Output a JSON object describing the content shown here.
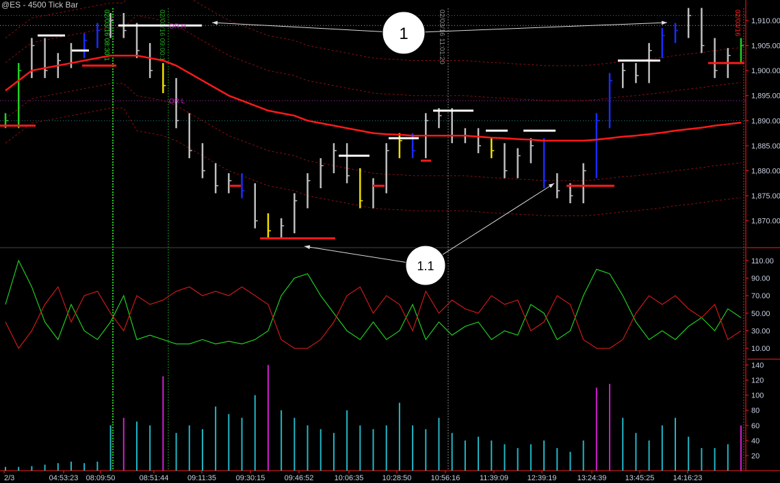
{
  "window": {
    "title": "@ES - 4500 Tick Bar"
  },
  "colors": {
    "background": "#000000",
    "bar": "#c0c0c0",
    "blue": "#1a2cff",
    "yellow": "#f0e000",
    "green": "#20d020",
    "ma": "#ff1a1a",
    "osc_green": "#22cc22",
    "osc_red": "#cc1a1a",
    "volume": "#22b8c8",
    "volume_spike": "#d020d0",
    "axis": "#ff2020"
  },
  "annotations": {
    "callout_1": "1",
    "callout_1_1": "1.1",
    "or_high": "OR H",
    "or_low": "OR L",
    "session_line_1": "02/03/16 08:30:1",
    "session_line_2": "02/03/16 09:00:1",
    "session_line_3": "02/03/16 11:01:20",
    "session_line_4": "02/03/16"
  },
  "chart_data": [
    {
      "type": "bar",
      "name": "price",
      "ylim": [
        1866,
        1913
      ],
      "y_ticks": [
        "1,910.00",
        "1,905.00",
        "1,900.00",
        "1,895.00",
        "1,890.00",
        "1,885.00",
        "1,880.00",
        "1,875.00",
        "1,870.00"
      ],
      "y_tick_values": [
        1910,
        1905,
        1900,
        1895,
        1890,
        1885,
        1880,
        1875,
        1870
      ],
      "close": [
        1890,
        1900,
        1905,
        1900,
        1902,
        1904,
        1906,
        1908,
        1910,
        1908,
        1904,
        1900,
        1897,
        1890,
        1884,
        1880,
        1877,
        1878,
        1876,
        1870,
        1868,
        1869,
        1874,
        1878,
        1881,
        1884,
        1879,
        1874,
        1877,
        1884,
        1886,
        1884,
        1890,
        1891,
        1887,
        1887,
        1885,
        1884,
        1880,
        1883,
        1885,
        1878,
        1876,
        1875,
        1880,
        1890,
        1898,
        1900,
        1899,
        1904,
        1907,
        1908,
        1911,
        1905,
        1900,
        1903,
        1905
      ],
      "bar_colors": [
        "green",
        "green",
        "gray",
        "gray",
        "gray",
        "gray",
        "blue",
        "blue",
        "gray",
        "gray",
        "gray",
        "gray",
        "yellow",
        "gray",
        "gray",
        "gray",
        "gray",
        "gray",
        "blue",
        "gray",
        "yellow",
        "gray",
        "gray",
        "gray",
        "gray",
        "gray",
        "gray",
        "yellow",
        "gray",
        "gray",
        "yellow",
        "blue",
        "gray",
        "gray",
        "gray",
        "gray",
        "gray",
        "yellow",
        "gray",
        "gray",
        "gray",
        "blue",
        "gray",
        "gray",
        "gray",
        "blue",
        "blue",
        "gray",
        "gray",
        "gray",
        "blue",
        "blue",
        "gray",
        "gray",
        "gray",
        "gray",
        "green"
      ],
      "moving_average": [
        1896,
        1898,
        1900,
        1900.5,
        1901,
        1901.5,
        1902,
        1902.5,
        1903,
        1903,
        1903,
        1902.5,
        1902,
        1901,
        1899.5,
        1898,
        1896.5,
        1895,
        1894,
        1893,
        1892,
        1891.5,
        1891,
        1890,
        1889.5,
        1889,
        1888.5,
        1888,
        1887.5,
        1887.3,
        1887.2,
        1887,
        1887,
        1887,
        1887,
        1887,
        1886.8,
        1886.6,
        1886.5,
        1886.3,
        1886.2,
        1886,
        1886,
        1886,
        1886,
        1886.2,
        1886.5,
        1886.8,
        1887,
        1887.3,
        1887.6,
        1888,
        1888.3,
        1888.6,
        1889,
        1889.3,
        1889.6
      ],
      "or_high": 1909,
      "or_low": 1894
    },
    {
      "type": "line",
      "name": "oscillator",
      "ylim": [
        0,
        120
      ],
      "y_ticks": [
        "110.00",
        "90.00",
        "70.00",
        "50.00",
        "30.00",
        "10.00"
      ],
      "y_tick_values": [
        110,
        90,
        70,
        50,
        30,
        10
      ],
      "series": [
        {
          "color": "#22cc22",
          "values": [
            60,
            110,
            80,
            40,
            20,
            60,
            30,
            20,
            40,
            70,
            20,
            25,
            20,
            15,
            15,
            20,
            15,
            18,
            15,
            20,
            30,
            70,
            90,
            95,
            70,
            50,
            30,
            20,
            40,
            20,
            30,
            60,
            20,
            40,
            25,
            35,
            40,
            20,
            30,
            25,
            60,
            50,
            20,
            30,
            70,
            100,
            95,
            70,
            40,
            20,
            30,
            20,
            35,
            45,
            30,
            55,
            45
          ]
        },
        {
          "color": "#cc1a1a",
          "values": [
            40,
            10,
            30,
            60,
            80,
            40,
            70,
            75,
            50,
            30,
            70,
            60,
            65,
            75,
            80,
            70,
            75,
            70,
            80,
            70,
            60,
            20,
            10,
            10,
            20,
            40,
            70,
            80,
            50,
            70,
            60,
            30,
            75,
            50,
            65,
            55,
            50,
            70,
            60,
            65,
            30,
            40,
            70,
            60,
            20,
            10,
            10,
            20,
            50,
            70,
            60,
            70,
            55,
            45,
            60,
            20,
            30
          ]
        }
      ]
    },
    {
      "type": "bar",
      "name": "volume",
      "ylim": [
        0,
        145
      ],
      "y_ticks": [
        "140",
        "120",
        "100",
        "80",
        "60",
        "40",
        "20"
      ],
      "y_tick_values": [
        140,
        120,
        100,
        80,
        60,
        40,
        20
      ],
      "values": [
        5,
        5,
        6,
        8,
        10,
        12,
        10,
        12,
        60,
        70,
        65,
        60,
        125,
        50,
        60,
        55,
        85,
        75,
        70,
        100,
        140,
        80,
        70,
        60,
        55,
        50,
        80,
        60,
        55,
        60,
        90,
        60,
        55,
        70,
        50,
        40,
        45,
        40,
        35,
        30,
        35,
        40,
        30,
        25,
        40,
        110,
        115,
        70,
        50,
        40,
        60,
        70,
        45,
        30,
        30,
        35,
        60
      ],
      "spikes": [
        9,
        12,
        20,
        45,
        46,
        56
      ]
    }
  ],
  "x_axis": {
    "labels": [
      "2/3",
      "04:53:23",
      "08:09:50",
      "08:51:44",
      "09:11:35",
      "09:30:15",
      "09:46:52",
      "10:06:35",
      "10:28:50",
      "10:56:16",
      "11:39:09",
      "12:39:19",
      "13:24:39",
      "13:45:25",
      "14:16:23"
    ]
  }
}
